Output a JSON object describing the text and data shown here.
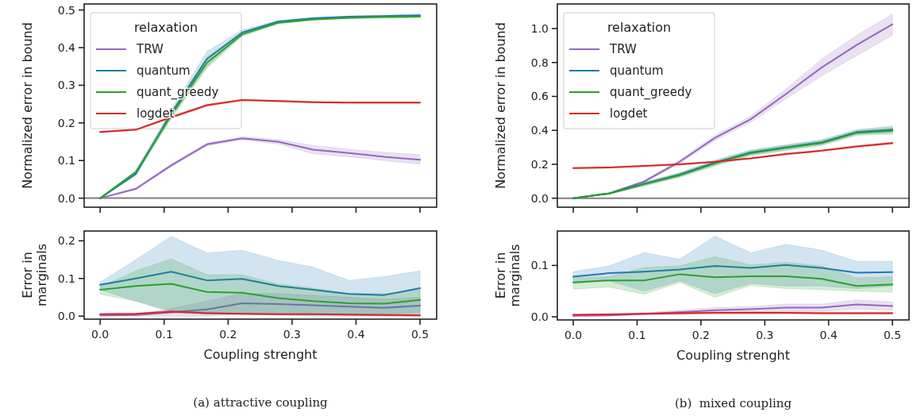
{
  "chart_data": [
    {
      "type": "line",
      "ylabel": "Normalized error in bound",
      "legend": "top left",
      "legend_title": "relaxation",
      "tick_labels": "y",
      "x": [
        0,
        0.056,
        0.111,
        0.167,
        0.222,
        0.278,
        0.333,
        0.389,
        0.444,
        0.5
      ],
      "xlim": [
        -0.025,
        0.526
      ],
      "xticks": [
        {
          "value": 0,
          "label": null
        },
        {
          "value": 0.1,
          "label": null
        },
        {
          "value": 0.2,
          "label": null
        },
        {
          "value": 0.3,
          "label": null
        },
        {
          "value": 0.4,
          "label": null
        },
        {
          "value": 0.5,
          "label": null
        }
      ],
      "ylim": [
        -0.024,
        0.516
      ],
      "yticks": [
        {
          "value": 0,
          "label": "0.0"
        },
        {
          "value": 0.1,
          "label": "0.1"
        },
        {
          "value": 0.2,
          "label": "0.2"
        },
        {
          "value": 0.3,
          "label": "0.3"
        },
        {
          "value": 0.4,
          "label": "0.4"
        },
        {
          "value": 0.5,
          "label": "0.5"
        }
      ],
      "ref_lines": [
        {
          "axis": "y",
          "value": 0,
          "color": "#808080"
        }
      ],
      "series": [
        {
          "name": "TRW",
          "color": "#9467bd",
          "values": [
            0,
            0.025,
            0.087,
            0.143,
            0.159,
            0.15,
            0.129,
            0.12,
            0.11,
            0.102
          ],
          "lower": [
            0,
            0.022,
            0.083,
            0.139,
            0.155,
            0.144,
            0.118,
            0.11,
            0.1,
            0.09
          ],
          "upper": [
            0,
            0.028,
            0.091,
            0.147,
            0.163,
            0.156,
            0.14,
            0.13,
            0.122,
            0.116
          ]
        },
        {
          "name": "quantum",
          "color": "#1f77b4",
          "values": [
            0,
            0.065,
            0.225,
            0.37,
            0.44,
            0.469,
            0.478,
            0.482,
            0.484,
            0.486
          ],
          "lower": [
            0,
            0.06,
            0.215,
            0.35,
            0.435,
            0.466,
            0.476,
            0.48,
            0.482,
            0.483
          ],
          "upper": [
            0,
            0.072,
            0.235,
            0.39,
            0.447,
            0.472,
            0.48,
            0.484,
            0.486,
            0.489
          ]
        },
        {
          "name": "quant_greedy",
          "color": "#2ca02c",
          "values": [
            0,
            0.07,
            0.22,
            0.36,
            0.435,
            0.466,
            0.475,
            0.479,
            0.481,
            0.482
          ],
          "lower": [
            0,
            0.065,
            0.21,
            0.345,
            0.43,
            0.463,
            0.473,
            0.477,
            0.479,
            0.48
          ],
          "upper": [
            0,
            0.075,
            0.23,
            0.375,
            0.44,
            0.469,
            0.477,
            0.481,
            0.483,
            0.484
          ]
        },
        {
          "name": "logdet",
          "color": "#d62728",
          "values": [
            0.176,
            0.182,
            0.215,
            0.247,
            0.261,
            0.258,
            0.255,
            0.254,
            0.254,
            0.254
          ],
          "lower": [
            0.174,
            0.18,
            0.212,
            0.244,
            0.259,
            0.256,
            0.253,
            0.252,
            0.252,
            0.252
          ],
          "upper": [
            0.178,
            0.184,
            0.218,
            0.25,
            0.263,
            0.26,
            0.257,
            0.256,
            0.256,
            0.256
          ]
        }
      ]
    },
    {
      "type": "line",
      "xlabel": "Coupling strenght",
      "ylabel": "Error in\nmarginals",
      "annotations": [
        "(a) attractive coupling"
      ],
      "x": [
        0,
        0.056,
        0.111,
        0.167,
        0.222,
        0.278,
        0.333,
        0.389,
        0.444,
        0.5
      ],
      "xlim": [
        -0.025,
        0.526
      ],
      "xticks": [
        {
          "value": 0,
          "label": "0.0"
        },
        {
          "value": 0.1,
          "label": "0.1"
        },
        {
          "value": 0.2,
          "label": "0.2"
        },
        {
          "value": 0.3,
          "label": "0.3"
        },
        {
          "value": 0.4,
          "label": "0.4"
        },
        {
          "value": 0.5,
          "label": "0.5"
        }
      ],
      "ylim": [
        -0.008,
        0.226
      ],
      "yticks": [
        {
          "value": 0,
          "label": "0.0"
        },
        {
          "value": 0.1,
          "label": "0.1"
        },
        {
          "value": 0.2,
          "label": "0.2"
        }
      ],
      "series": [
        {
          "color": "#9467bd",
          "values": [
            0.002,
            0.003,
            0.01,
            0.018,
            0.034,
            0.032,
            0.029,
            0.025,
            0.022,
            0.028
          ],
          "lower": [
            0,
            0,
            0,
            0,
            0.005,
            0.006,
            0.005,
            0.003,
            0.002,
            0.006
          ],
          "upper": [
            0.004,
            0.005,
            0.02,
            0.04,
            0.06,
            0.06,
            0.055,
            0.05,
            0.045,
            0.05
          ]
        },
        {
          "color": "#1f77b4",
          "values": [
            0.083,
            0.1,
            0.118,
            0.095,
            0.099,
            0.08,
            0.07,
            0.059,
            0.056,
            0.074
          ],
          "lower": [
            0.07,
            0.04,
            0.01,
            0.005,
            0.005,
            0.003,
            0,
            0,
            0,
            0
          ],
          "upper": [
            0.09,
            0.15,
            0.212,
            0.168,
            0.175,
            0.148,
            0.13,
            0.095,
            0.105,
            0.12
          ]
        },
        {
          "color": "#2ca02c",
          "values": [
            0.07,
            0.08,
            0.086,
            0.064,
            0.062,
            0.048,
            0.04,
            0.034,
            0.033,
            0.043
          ],
          "lower": [
            0.058,
            0.04,
            0.015,
            0.01,
            0.01,
            0.005,
            0.005,
            0.005,
            0.005,
            0.01
          ],
          "upper": [
            0.078,
            0.12,
            0.152,
            0.11,
            0.11,
            0.085,
            0.075,
            0.06,
            0.06,
            0.07
          ]
        },
        {
          "color": "#d62728",
          "values": [
            0.005,
            0.006,
            0.012,
            0.008,
            0.006,
            0.005,
            0.005,
            0.004,
            0.003,
            0.002
          ],
          "lower": [
            0.003,
            0.004,
            0.009,
            0.006,
            0.004,
            0.003,
            0.003,
            0.002,
            0.001,
            0
          ],
          "upper": [
            0.007,
            0.008,
            0.015,
            0.01,
            0.008,
            0.007,
            0.007,
            0.006,
            0.005,
            0.004
          ]
        }
      ]
    },
    {
      "type": "line",
      "ylabel": "Normalized error in bound",
      "legend": "top left",
      "legend_title": "relaxation",
      "tick_labels": "y",
      "x": [
        0,
        0.056,
        0.111,
        0.167,
        0.222,
        0.278,
        0.333,
        0.389,
        0.444,
        0.5
      ],
      "xlim": [
        -0.025,
        0.526
      ],
      "xticks": [
        {
          "value": 0,
          "label": null
        },
        {
          "value": 0.1,
          "label": null
        },
        {
          "value": 0.2,
          "label": null
        },
        {
          "value": 0.3,
          "label": null
        },
        {
          "value": 0.4,
          "label": null
        },
        {
          "value": 0.5,
          "label": null
        }
      ],
      "ylim": [
        -0.053,
        1.145
      ],
      "yticks": [
        {
          "value": 0,
          "label": "0.0"
        },
        {
          "value": 0.2,
          "label": "0.2"
        },
        {
          "value": 0.4,
          "label": "0.4"
        },
        {
          "value": 0.6,
          "label": "0.6"
        },
        {
          "value": 0.8,
          "label": "0.8"
        },
        {
          "value": 1,
          "label": "1.0"
        }
      ],
      "ref_lines": [
        {
          "axis": "y",
          "value": 0,
          "color": "#808080"
        }
      ],
      "series": [
        {
          "name": "TRW",
          "color": "#9467bd",
          "values": [
            0,
            0.028,
            0.098,
            0.216,
            0.356,
            0.466,
            0.614,
            0.77,
            0.903,
            1.025
          ],
          "lower": [
            0,
            0.024,
            0.09,
            0.205,
            0.34,
            0.448,
            0.585,
            0.72,
            0.84,
            0.96
          ],
          "upper": [
            0,
            0.032,
            0.106,
            0.227,
            0.372,
            0.484,
            0.643,
            0.82,
            0.96,
            1.085
          ]
        },
        {
          "name": "quantum",
          "color": "#1f77b4",
          "values": [
            0,
            0.028,
            0.085,
            0.14,
            0.21,
            0.27,
            0.3,
            0.33,
            0.39,
            0.405
          ],
          "lower": [
            0,
            0.024,
            0.075,
            0.128,
            0.195,
            0.255,
            0.285,
            0.315,
            0.375,
            0.385
          ],
          "upper": [
            0,
            0.032,
            0.095,
            0.152,
            0.225,
            0.285,
            0.315,
            0.345,
            0.405,
            0.425
          ]
        },
        {
          "name": "quant_greedy",
          "color": "#2ca02c",
          "values": [
            0,
            0.028,
            0.082,
            0.135,
            0.205,
            0.265,
            0.297,
            0.325,
            0.385,
            0.397
          ],
          "lower": [
            0,
            0.024,
            0.072,
            0.123,
            0.19,
            0.25,
            0.282,
            0.31,
            0.37,
            0.377
          ],
          "upper": [
            0,
            0.032,
            0.092,
            0.147,
            0.22,
            0.28,
            0.312,
            0.34,
            0.4,
            0.417
          ]
        },
        {
          "name": "logdet",
          "color": "#d62728",
          "values": [
            0.178,
            0.181,
            0.19,
            0.2,
            0.215,
            0.235,
            0.26,
            0.28,
            0.305,
            0.325
          ],
          "lower": [
            0.174,
            0.177,
            0.186,
            0.196,
            0.211,
            0.231,
            0.255,
            0.275,
            0.299,
            0.318
          ],
          "upper": [
            0.182,
            0.185,
            0.194,
            0.204,
            0.219,
            0.239,
            0.265,
            0.285,
            0.311,
            0.332
          ]
        }
      ]
    },
    {
      "type": "line",
      "xlabel": "Coupling strenght",
      "ylabel": "Error in\nmarginals",
      "annotations": [
        "(b)  mixed coupling"
      ],
      "x": [
        0,
        0.056,
        0.111,
        0.167,
        0.222,
        0.278,
        0.333,
        0.389,
        0.444,
        0.5
      ],
      "xlim": [
        -0.025,
        0.526
      ],
      "xticks": [
        {
          "value": 0,
          "label": "0.0"
        },
        {
          "value": 0.1,
          "label": "0.1"
        },
        {
          "value": 0.2,
          "label": "0.2"
        },
        {
          "value": 0.3,
          "label": "0.3"
        },
        {
          "value": 0.4,
          "label": "0.4"
        },
        {
          "value": 0.5,
          "label": "0.5"
        }
      ],
      "ylim": [
        -0.006,
        0.167
      ],
      "yticks": [
        {
          "value": 0,
          "label": "0.0"
        },
        {
          "value": 0.1,
          "label": "0.1"
        }
      ],
      "series": [
        {
          "color": "#9467bd",
          "values": [
            0.002,
            0.003,
            0.006,
            0.009,
            0.013,
            0.015,
            0.018,
            0.018,
            0.024,
            0.021
          ],
          "lower": [
            0,
            0.001,
            0.004,
            0.005,
            0.008,
            0.01,
            0.011,
            0.011,
            0.015,
            0.013
          ],
          "upper": [
            0.004,
            0.005,
            0.008,
            0.013,
            0.018,
            0.02,
            0.025,
            0.025,
            0.033,
            0.029
          ]
        },
        {
          "color": "#1f77b4",
          "values": [
            0.078,
            0.085,
            0.088,
            0.092,
            0.099,
            0.095,
            0.101,
            0.095,
            0.086,
            0.087
          ],
          "lower": [
            0.065,
            0.07,
            0.05,
            0.07,
            0.045,
            0.065,
            0.06,
            0.06,
            0.055,
            0.06
          ],
          "upper": [
            0.088,
            0.099,
            0.125,
            0.112,
            0.157,
            0.125,
            0.141,
            0.13,
            0.108,
            0.108
          ]
        },
        {
          "color": "#2ca02c",
          "values": [
            0.067,
            0.071,
            0.071,
            0.083,
            0.077,
            0.079,
            0.079,
            0.074,
            0.06,
            0.063
          ],
          "lower": [
            0.054,
            0.058,
            0.044,
            0.067,
            0.038,
            0.061,
            0.055,
            0.053,
            0.05,
            0.048
          ],
          "upper": [
            0.076,
            0.078,
            0.096,
            0.099,
            0.117,
            0.101,
            0.106,
            0.099,
            0.076,
            0.078
          ]
        },
        {
          "color": "#d62728",
          "values": [
            0.004,
            0.005,
            0.006,
            0.007,
            0.008,
            0.008,
            0.008,
            0.007,
            0.007,
            0.007
          ],
          "lower": [
            0.003,
            0.004,
            0.005,
            0.005,
            0.006,
            0.006,
            0.006,
            0.005,
            0.005,
            0.005
          ],
          "upper": [
            0.005,
            0.006,
            0.007,
            0.009,
            0.01,
            0.01,
            0.01,
            0.009,
            0.009,
            0.009
          ]
        }
      ]
    }
  ]
}
